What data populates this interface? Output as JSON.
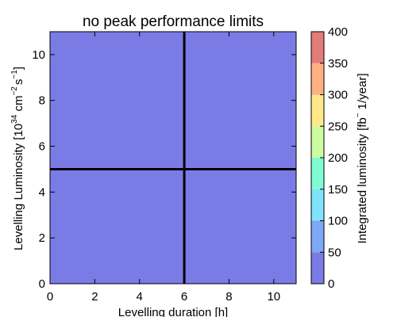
{
  "chart_data": {
    "type": "heatmap",
    "title": "no peak performance limits",
    "xlabel": "Levelling duration [h]",
    "ylabel": "Levelling Luminosity [10^34 cm^-2 s^-1]",
    "ylabel_parts": {
      "prefix": "Levelling Luminosity [",
      "base": "10",
      "base_exp": "34",
      "unit1": " cm",
      "unit1_exp": "−2",
      "unit2": "s",
      "unit2_exp": "−1",
      "suffix": "]"
    },
    "xlim": [
      0,
      11
    ],
    "ylim": [
      0,
      11
    ],
    "xticks": [
      0,
      2,
      4,
      6,
      8,
      10
    ],
    "yticks": [
      0,
      2,
      4,
      6,
      8,
      10
    ],
    "fill_color": "#7b7be6",
    "fill_value_range": [
      0,
      50
    ],
    "reference_lines": {
      "x": 6,
      "y": 5
    },
    "colorbar": {
      "label": "Integrated luminosity [fb^-1/year]",
      "label_parts": {
        "prefix": "Integrated luminosity [",
        "unit": "fb",
        "unit_exp": "−",
        "suffix": "1/year]"
      },
      "ticks": [
        0,
        50,
        100,
        150,
        200,
        250,
        300,
        350,
        400
      ],
      "range": [
        0,
        400
      ],
      "bands": [
        {
          "from": 0,
          "to": 50,
          "color": "#7b7be6"
        },
        {
          "from": 50,
          "to": 100,
          "color": "#7fa7f7"
        },
        {
          "from": 100,
          "to": 150,
          "color": "#7fe3fb"
        },
        {
          "from": 150,
          "to": 200,
          "color": "#7ffbd3"
        },
        {
          "from": 200,
          "to": 250,
          "color": "#cdfb9f"
        },
        {
          "from": 250,
          "to": 300,
          "color": "#fde98a"
        },
        {
          "from": 300,
          "to": 350,
          "color": "#feb083"
        },
        {
          "from": 350,
          "to": 400,
          "color": "#e37b7b"
        }
      ]
    },
    "grid": false,
    "legend": "none"
  }
}
